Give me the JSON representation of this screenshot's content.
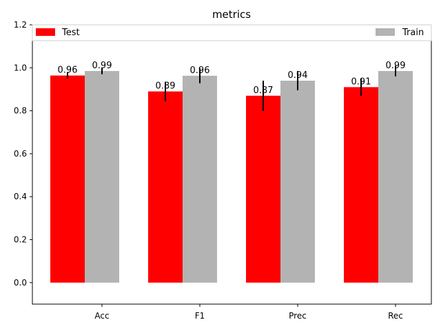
{
  "chart_data": {
    "type": "bar",
    "title": "metrics",
    "xlabel": "",
    "ylabel": "",
    "categories": [
      "Acc",
      "F1",
      "Prec",
      "Rec"
    ],
    "series": [
      {
        "name": "Test",
        "color": "#ff0000",
        "values": [
          0.964,
          0.89,
          0.87,
          0.91
        ],
        "labels": [
          "0.96",
          "0.89",
          "0.87",
          "0.91"
        ],
        "errors": [
          0.015,
          0.045,
          0.07,
          0.04
        ]
      },
      {
        "name": "Train",
        "color": "#b3b3b3",
        "values": [
          0.985,
          0.963,
          0.94,
          0.985
        ],
        "labels": [
          "0.99",
          "0.96",
          "0.94",
          "0.99"
        ],
        "errors": [
          0.015,
          0.035,
          0.045,
          0.025
        ]
      }
    ],
    "ylim": [
      -0.1,
      1.2
    ],
    "yticks": [
      "0.0",
      "0.2",
      "0.4",
      "0.6",
      "0.8",
      "1.0",
      "1.2"
    ],
    "grid": false,
    "legend": {
      "left": "Test",
      "right": "Train",
      "placement": "top"
    }
  }
}
